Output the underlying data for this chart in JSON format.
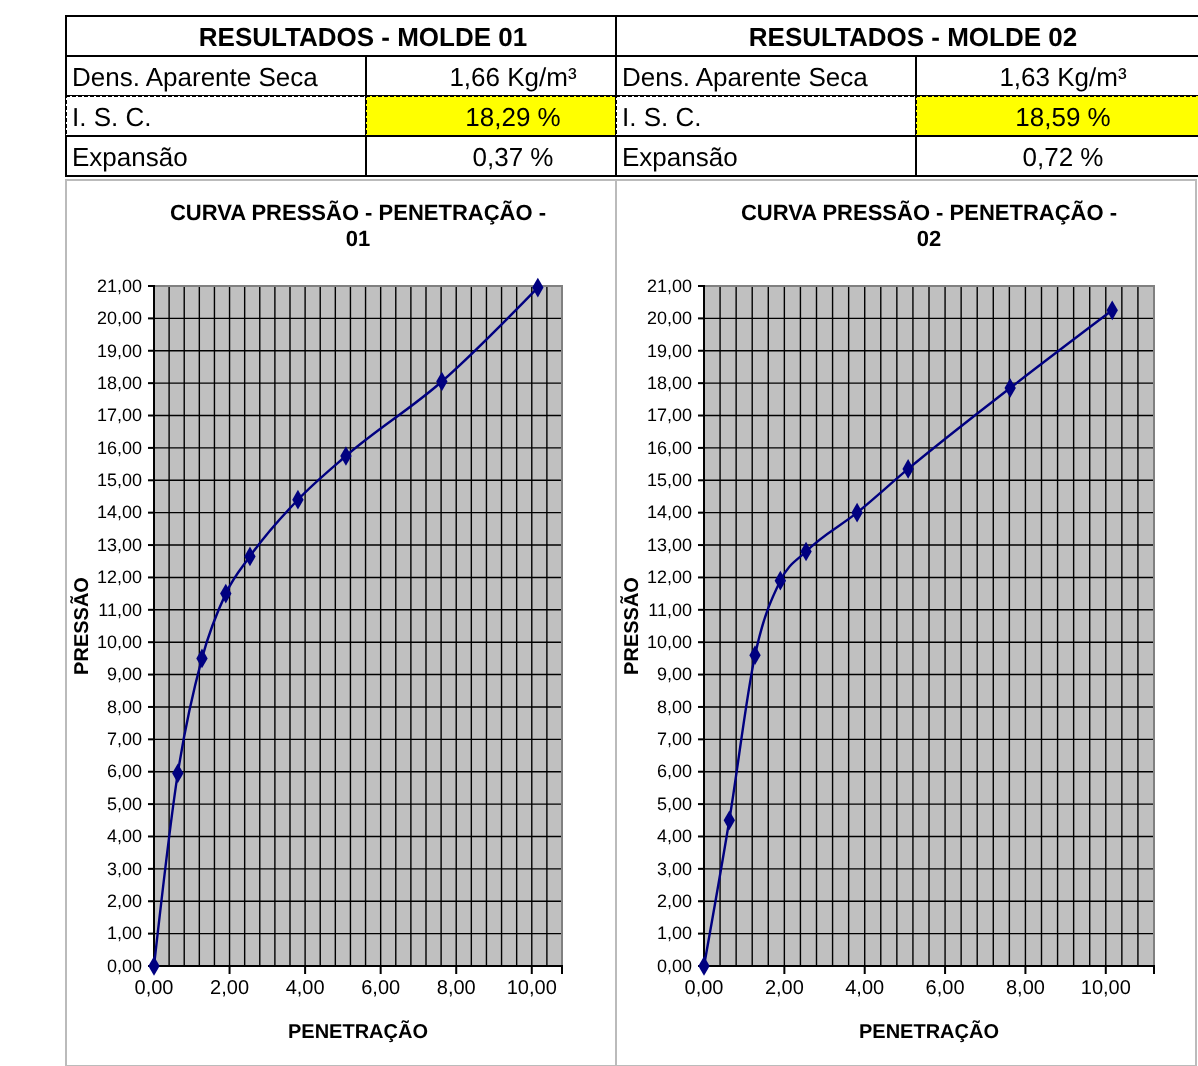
{
  "chart_data": [
    {
      "type": "other",
      "title": "RESULTADOS - MOLDE 01",
      "annotations": [
        "Dens. Aparente Seca",
        "1,66 Kg/m³",
        "I. S. C.",
        "18,29 %",
        "Expansão",
        "0,37 %"
      ]
    },
    {
      "type": "other",
      "title": "RESULTADOS - MOLDE 02",
      "annotations": [
        "Dens. Aparente Seca",
        "1,63 Kg/m³",
        "I. S. C.",
        "18,59 %",
        "Expansão",
        "0,72 %"
      ]
    },
    {
      "type": "line",
      "title": "CURVA PRESSÃO - PENETRAÇÃO - 01",
      "xlabel": "PENETRAÇÃO",
      "ylabel": "PRESSÃO",
      "x": [
        0,
        0.63,
        1.27,
        1.9,
        2.54,
        3.81,
        5.08,
        7.62,
        10.16
      ],
      "series": [
        {
          "color": "#000080",
          "values": [
            0,
            5.95,
            9.5,
            11.5,
            12.65,
            14.4,
            15.75,
            18.05,
            20.95
          ]
        }
      ],
      "xlim": [
        0,
        10.8
      ],
      "xticks": [
        {
          "value": 0,
          "label": "0,00"
        },
        {
          "value": 2,
          "label": "2,00"
        },
        {
          "value": 4,
          "label": "4,00"
        },
        {
          "value": 6,
          "label": "6,00"
        },
        {
          "value": 8,
          "label": "8,00"
        },
        {
          "value": 10,
          "label": "10,00"
        }
      ],
      "ylim": [
        0,
        21
      ],
      "yticks": [
        {
          "value": 0,
          "label": "0,00"
        },
        {
          "value": 1,
          "label": "1,00"
        },
        {
          "value": 2,
          "label": "2,00"
        },
        {
          "value": 3,
          "label": "3,00"
        },
        {
          "value": 4,
          "label": "4,00"
        },
        {
          "value": 5,
          "label": "5,00"
        },
        {
          "value": 6,
          "label": "6,00"
        },
        {
          "value": 7,
          "label": "7,00"
        },
        {
          "value": 8,
          "label": "8,00"
        },
        {
          "value": 9,
          "label": "9,00"
        },
        {
          "value": 10,
          "label": "10,00"
        },
        {
          "value": 11,
          "label": "11,00"
        },
        {
          "value": 12,
          "label": "12,00"
        },
        {
          "value": 13,
          "label": "13,00"
        },
        {
          "value": 14,
          "label": "14,00"
        },
        {
          "value": 15,
          "label": "15,00"
        },
        {
          "value": 16,
          "label": "16,00"
        },
        {
          "value": 17,
          "label": "17,00"
        },
        {
          "value": 18,
          "label": "18,00"
        },
        {
          "value": 19,
          "label": "19,00"
        },
        {
          "value": 20,
          "label": "20,00"
        },
        {
          "value": 21,
          "label": "21,00"
        }
      ],
      "grid": true,
      "marker": "diamond"
    },
    {
      "type": "line",
      "title": "CURVA PRESSÃO - PENETRAÇÃO - 02",
      "xlabel": "PENETRAÇÃO",
      "ylabel": "PRESSÃO",
      "x": [
        0,
        0.63,
        1.27,
        1.9,
        2.54,
        3.81,
        5.08,
        7.62,
        10.16
      ],
      "series": [
        {
          "color": "#000080",
          "values": [
            0,
            4.5,
            9.6,
            11.9,
            12.8,
            14.0,
            15.35,
            17.85,
            20.25
          ]
        }
      ],
      "xlim": [
        0,
        11.2
      ],
      "xticks": [
        {
          "value": 0,
          "label": "0,00"
        },
        {
          "value": 2,
          "label": "2,00"
        },
        {
          "value": 4,
          "label": "4,00"
        },
        {
          "value": 6,
          "label": "6,00"
        },
        {
          "value": 8,
          "label": "8,00"
        },
        {
          "value": 10,
          "label": "10,00"
        }
      ],
      "ylim": [
        0,
        21
      ],
      "yticks": [
        {
          "value": 0,
          "label": "0,00"
        },
        {
          "value": 1,
          "label": "1,00"
        },
        {
          "value": 2,
          "label": "2,00"
        },
        {
          "value": 3,
          "label": "3,00"
        },
        {
          "value": 4,
          "label": "4,00"
        },
        {
          "value": 5,
          "label": "5,00"
        },
        {
          "value": 6,
          "label": "6,00"
        },
        {
          "value": 7,
          "label": "7,00"
        },
        {
          "value": 8,
          "label": "8,00"
        },
        {
          "value": 9,
          "label": "9,00"
        },
        {
          "value": 10,
          "label": "10,00"
        },
        {
          "value": 11,
          "label": "11,00"
        },
        {
          "value": 12,
          "label": "12,00"
        },
        {
          "value": 13,
          "label": "13,00"
        },
        {
          "value": 14,
          "label": "14,00"
        },
        {
          "value": 15,
          "label": "15,00"
        },
        {
          "value": 16,
          "label": "16,00"
        },
        {
          "value": 17,
          "label": "17,00"
        },
        {
          "value": 18,
          "label": "18,00"
        },
        {
          "value": 19,
          "label": "19,00"
        },
        {
          "value": 20,
          "label": "20,00"
        },
        {
          "value": 21,
          "label": "21,00"
        }
      ],
      "grid": true,
      "marker": "diamond"
    }
  ]
}
